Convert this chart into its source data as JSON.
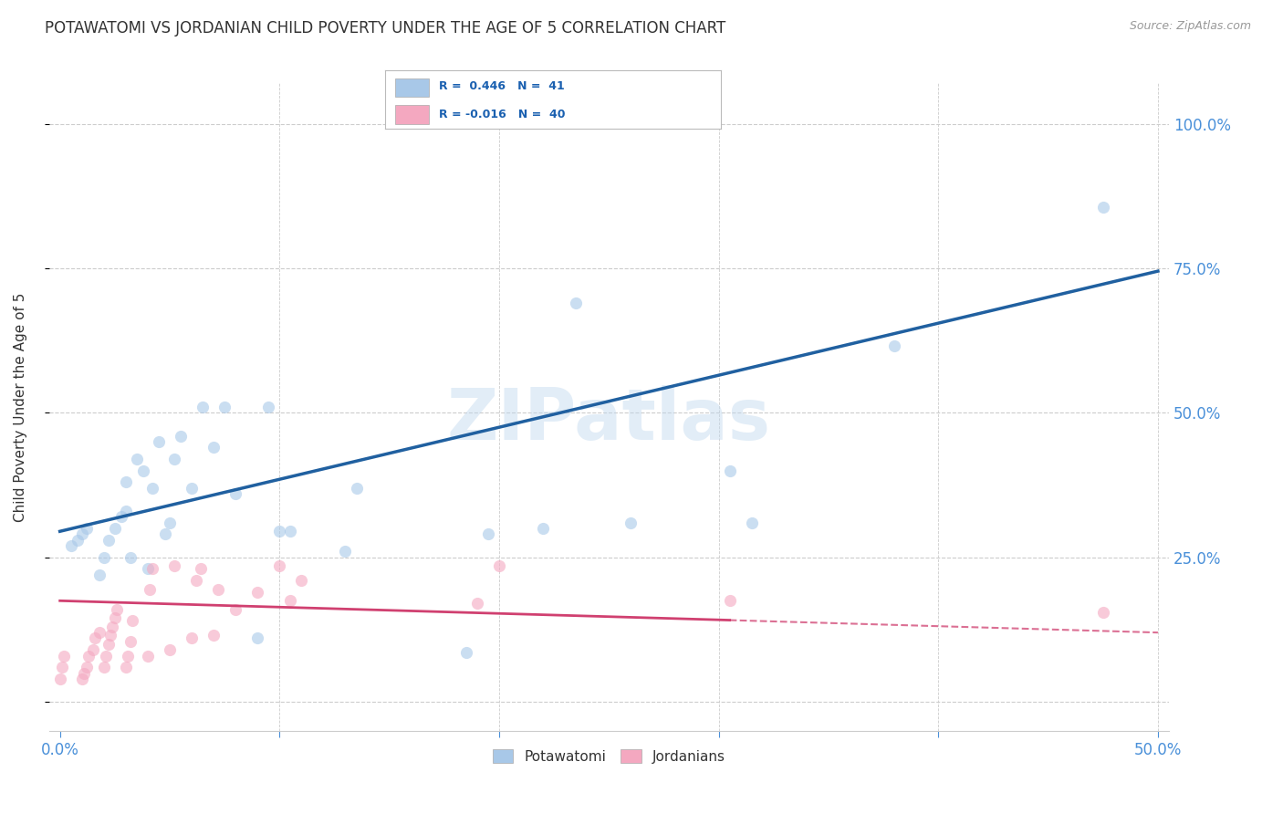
{
  "title": "POTAWATOMI VS JORDANIAN CHILD POVERTY UNDER THE AGE OF 5 CORRELATION CHART",
  "source": "Source: ZipAtlas.com",
  "ylabel": "Child Poverty Under the Age of 5",
  "yticks": [
    0.0,
    0.25,
    0.5,
    0.75,
    1.0
  ],
  "ytick_labels": [
    "",
    "25.0%",
    "50.0%",
    "75.0%",
    "100.0%"
  ],
  "xticks": [
    0.0,
    0.1,
    0.2,
    0.3,
    0.4,
    0.5
  ],
  "xtick_labels": [
    "0.0%",
    "",
    "",
    "",
    "",
    "50.0%"
  ],
  "xlim": [
    -0.005,
    0.505
  ],
  "ylim": [
    -0.05,
    1.07
  ],
  "watermark": "ZIPatlas",
  "potawatomi_color": "#a8c8e8",
  "jordanian_color": "#f4a8c0",
  "trendline_potawatomi_color": "#2060a0",
  "trendline_jordanian_color": "#d04070",
  "potawatomi_x": [
    0.005,
    0.008,
    0.01,
    0.012,
    0.018,
    0.02,
    0.022,
    0.025,
    0.028,
    0.03,
    0.03,
    0.032,
    0.035,
    0.038,
    0.04,
    0.042,
    0.045,
    0.048,
    0.05,
    0.052,
    0.055,
    0.06,
    0.065,
    0.07,
    0.075,
    0.08,
    0.09,
    0.095,
    0.1,
    0.105,
    0.13,
    0.135,
    0.185,
    0.195,
    0.22,
    0.235,
    0.26,
    0.305,
    0.315,
    0.38,
    0.475
  ],
  "potawatomi_y": [
    0.27,
    0.28,
    0.29,
    0.3,
    0.22,
    0.25,
    0.28,
    0.3,
    0.32,
    0.33,
    0.38,
    0.25,
    0.42,
    0.4,
    0.23,
    0.37,
    0.45,
    0.29,
    0.31,
    0.42,
    0.46,
    0.37,
    0.51,
    0.44,
    0.51,
    0.36,
    0.11,
    0.51,
    0.295,
    0.295,
    0.26,
    0.37,
    0.085,
    0.29,
    0.3,
    0.69,
    0.31,
    0.4,
    0.31,
    0.615,
    0.855
  ],
  "jordanian_x": [
    0.0,
    0.001,
    0.002,
    0.01,
    0.011,
    0.012,
    0.013,
    0.015,
    0.016,
    0.018,
    0.02,
    0.021,
    0.022,
    0.023,
    0.024,
    0.025,
    0.026,
    0.03,
    0.031,
    0.032,
    0.033,
    0.04,
    0.041,
    0.042,
    0.05,
    0.052,
    0.06,
    0.062,
    0.064,
    0.07,
    0.072,
    0.08,
    0.09,
    0.1,
    0.105,
    0.11,
    0.19,
    0.2,
    0.305,
    0.475
  ],
  "jordanian_y": [
    0.04,
    0.06,
    0.08,
    0.04,
    0.05,
    0.06,
    0.08,
    0.09,
    0.11,
    0.12,
    0.06,
    0.08,
    0.1,
    0.115,
    0.13,
    0.145,
    0.16,
    0.06,
    0.08,
    0.105,
    0.14,
    0.08,
    0.195,
    0.23,
    0.09,
    0.235,
    0.11,
    0.21,
    0.23,
    0.115,
    0.195,
    0.16,
    0.19,
    0.235,
    0.175,
    0.21,
    0.17,
    0.235,
    0.175,
    0.155
  ],
  "trendline_pot_x0": 0.0,
  "trendline_pot_x1": 0.5,
  "trendline_pot_y0": 0.295,
  "trendline_pot_y1": 0.745,
  "trendline_jor_x0": 0.0,
  "trendline_jor_x1": 0.5,
  "trendline_jor_y0": 0.175,
  "trendline_jor_y1": 0.12,
  "trendline_jor_solid_end": 0.305,
  "background_color": "#ffffff",
  "grid_color": "#cccccc",
  "title_color": "#333333",
  "axis_label_color": "#4a90d9",
  "marker_size": 90,
  "marker_alpha": 0.6
}
